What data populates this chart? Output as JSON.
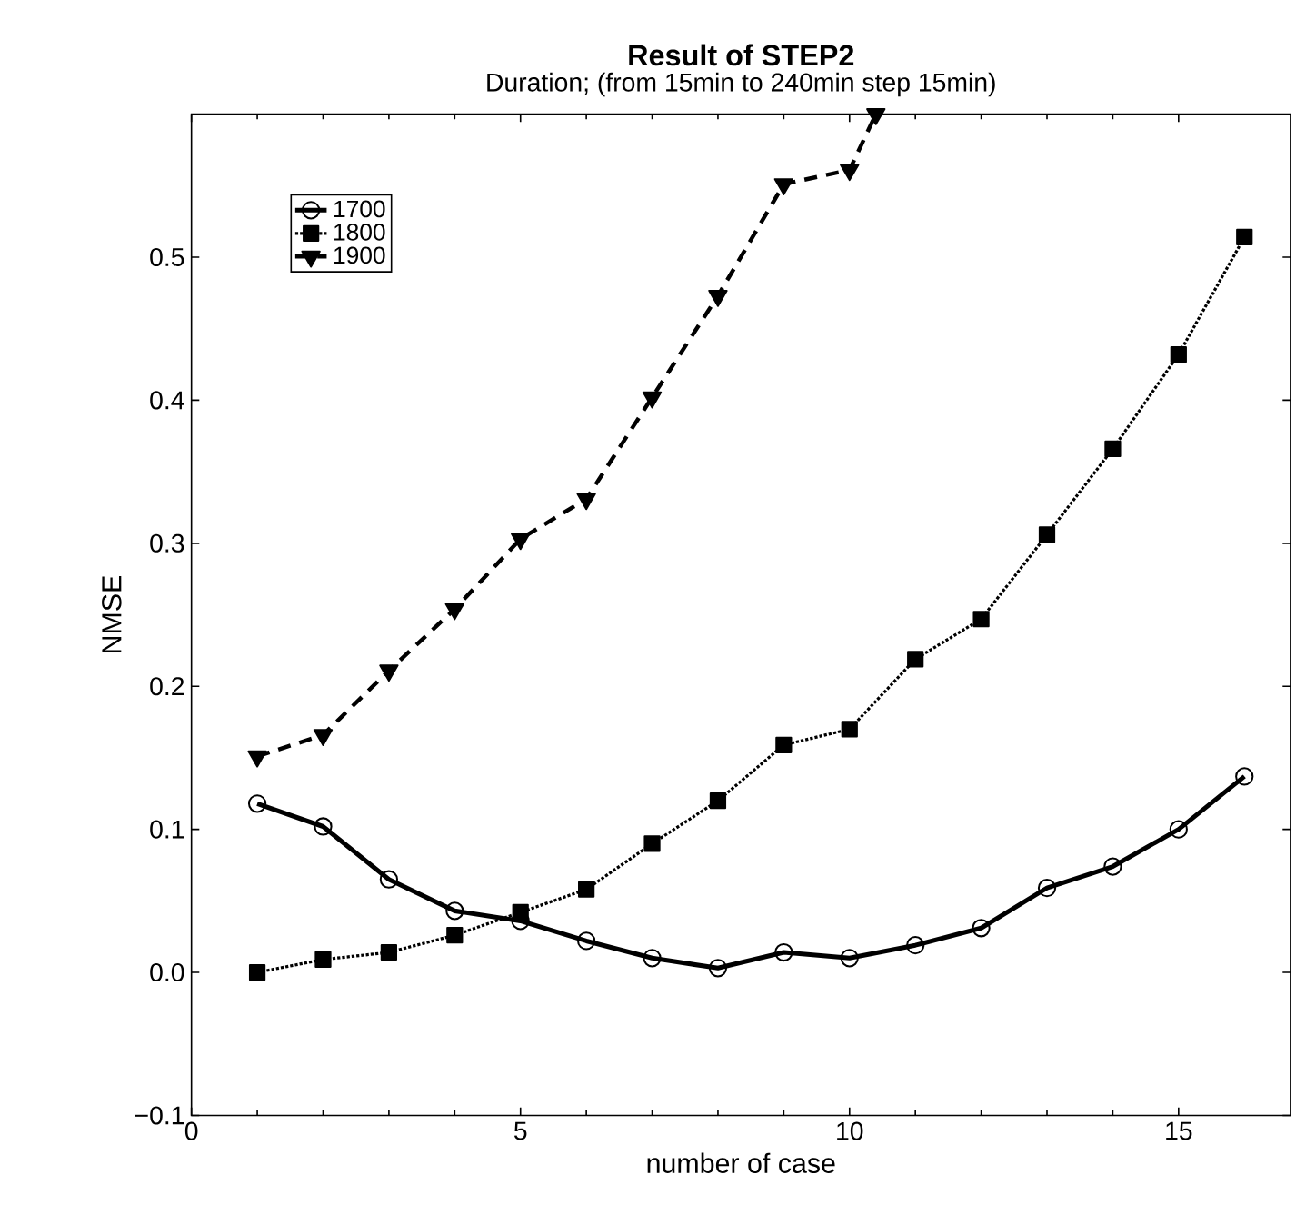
{
  "chart_data": {
    "type": "line",
    "title": "Result of STEP2",
    "subtitle": "Duration; (from 15min to 240min step 15min)",
    "xlabel": "number of  case",
    "ylabel": "NMSE",
    "xlim": [
      0,
      16.7
    ],
    "ylim": [
      -0.1,
      0.6
    ],
    "xticks": [
      0,
      5,
      10,
      15
    ],
    "yticks": [
      {
        "value": -0.1,
        "label": "−0.1"
      },
      {
        "value": 0,
        "label": "0.0"
      },
      0.1,
      0.2,
      0.3,
      0.4,
      0.5
    ],
    "legend": "top left",
    "grid": false,
    "series": [
      {
        "name": "1700",
        "color": "#000000",
        "marker": "circle",
        "line_style": "solid",
        "x": [
          1,
          2,
          3,
          4,
          5,
          6,
          7,
          8,
          9,
          10,
          11,
          12,
          13,
          14,
          15,
          16
        ],
        "values": [
          0.118,
          0.102,
          0.065,
          0.043,
          0.036,
          0.022,
          0.01,
          0.003,
          0.014,
          0.01,
          0.019,
          0.031,
          0.059,
          0.074,
          0.1,
          0.137
        ]
      },
      {
        "name": "1800",
        "color": "#000000",
        "marker": "square",
        "line_style": "dotted",
        "x": [
          1,
          2,
          3,
          4,
          5,
          6,
          7,
          8,
          9,
          10,
          11,
          12,
          13,
          14,
          15,
          16
        ],
        "values": [
          0.0,
          0.009,
          0.014,
          0.026,
          0.042,
          0.058,
          0.09,
          0.12,
          0.159,
          0.17,
          0.219,
          0.247,
          0.306,
          0.366,
          0.432,
          0.514
        ]
      },
      {
        "name": "1900",
        "color": "#000000",
        "marker": "triangle",
        "line_style": "dashed",
        "x": [
          1,
          2,
          3,
          4,
          5,
          6,
          7,
          8,
          9,
          10,
          10.4
        ],
        "values": [
          0.151,
          0.166,
          0.211,
          0.254,
          0.303,
          0.331,
          0.402,
          0.473,
          0.551,
          0.561,
          0.6
        ]
      }
    ]
  }
}
